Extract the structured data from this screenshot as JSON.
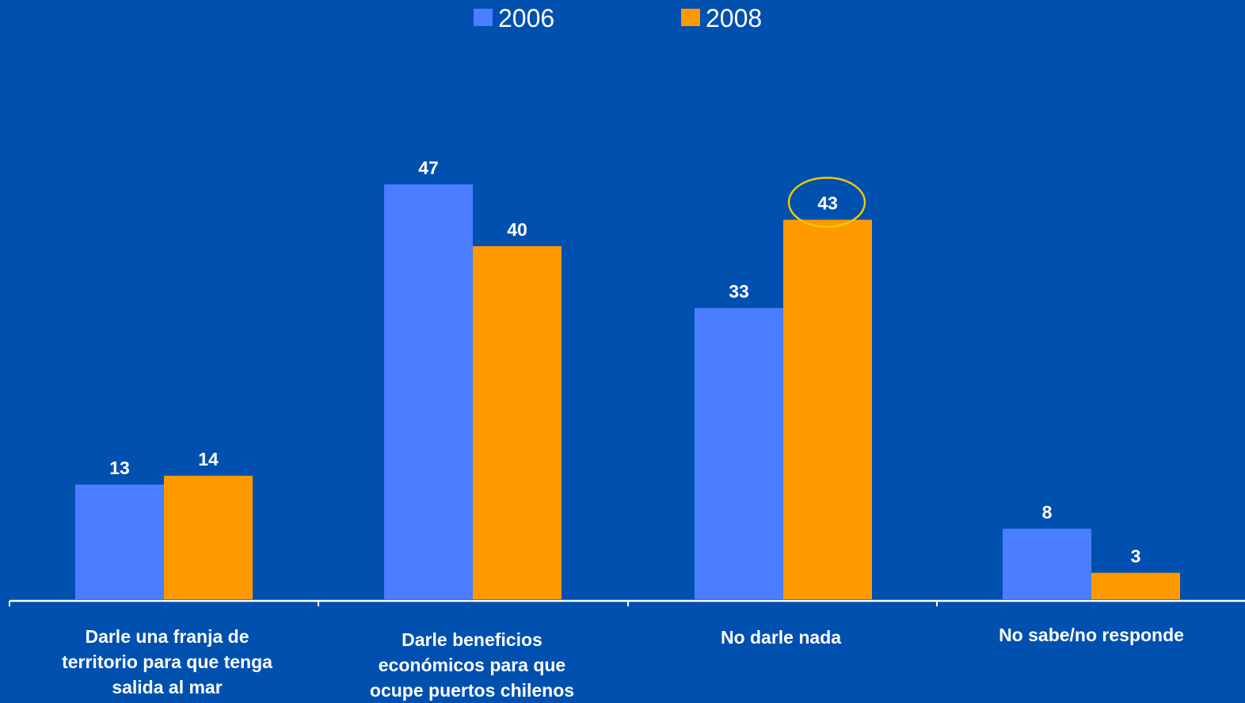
{
  "chart_data": {
    "type": "bar",
    "categories": [
      [
        "Darle una franja de",
        "territorio para que tenga",
        "salida al mar"
      ],
      [
        "Darle beneficios",
        "económicos para que",
        "ocupe puertos chilenos"
      ],
      [
        "No darle nada"
      ],
      [
        "No sabe/no responde"
      ]
    ],
    "series": [
      {
        "name": "2006",
        "color": "#4a7dff",
        "values": [
          13,
          47,
          33,
          8
        ]
      },
      {
        "name": "2008",
        "color": "#ff9900",
        "values": [
          14,
          40,
          43,
          3
        ]
      }
    ],
    "legend_position": "top-center",
    "highlight": {
      "series": 1,
      "category": 2,
      "shape": "ellipse",
      "color": "#f0c800"
    },
    "ylim": [
      0,
      50
    ],
    "grid": false,
    "axis_color": "#ffffff"
  }
}
